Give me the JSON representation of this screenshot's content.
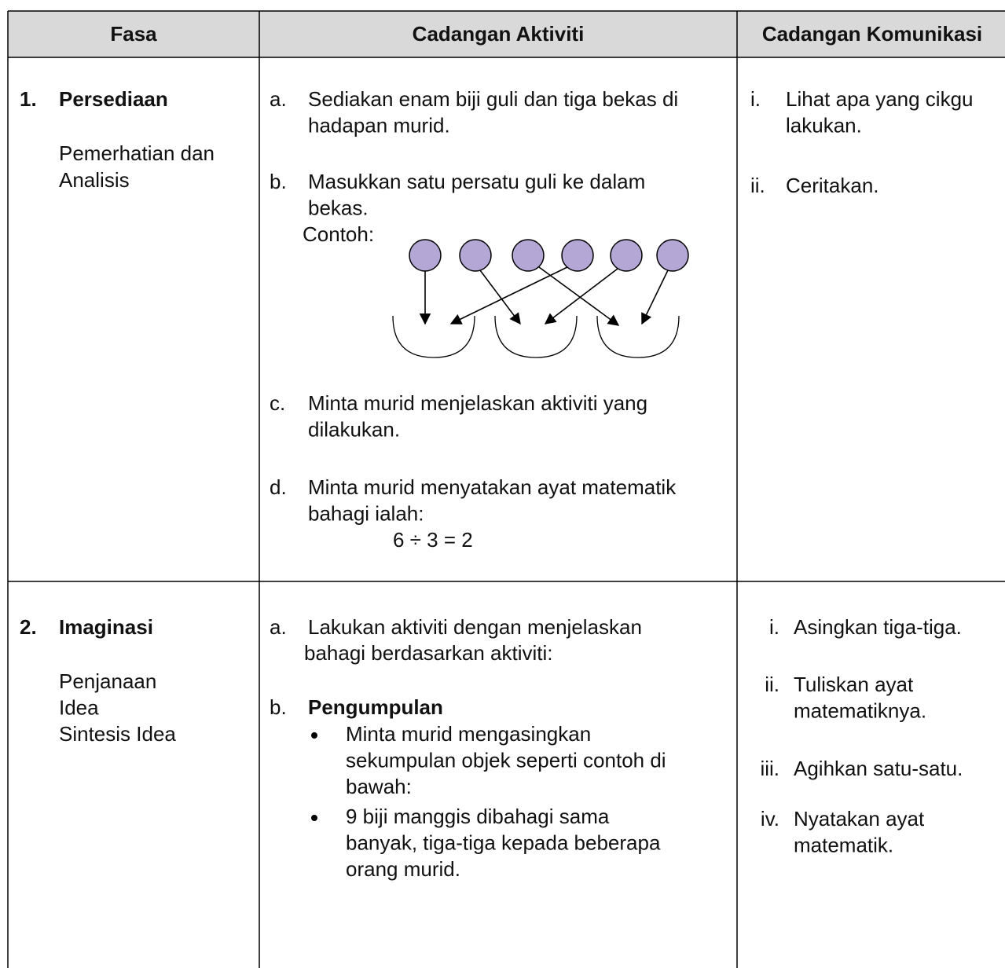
{
  "header": {
    "columns": [
      "Fasa",
      "Cadangan Aktiviti",
      "Cadangan Komunikasi"
    ]
  },
  "table": {
    "rows": [
      {
        "number": "1.",
        "phase": "Persediaan",
        "subphase": [
          "Pemerhatian dan",
          "Analisis"
        ],
        "activities": [
          {
            "marker": "a.",
            "lines": [
              "Sediakan enam biji guli dan tiga bekas di",
              "hadapan murid."
            ]
          },
          {
            "marker": "b.",
            "lines": [
              "Masukkan satu persatu guli ke dalam",
              "bekas."
            ],
            "example_label": "Contoh:"
          },
          {
            "marker": "c.",
            "lines": [
              "Minta murid menjelaskan aktiviti yang",
              "dilakukan."
            ]
          },
          {
            "marker": "d.",
            "lines": [
              "Minta murid menyatakan ayat matematik",
              "bahagi ialah:"
            ],
            "equation": "6 ÷ 3 = 2"
          }
        ],
        "communication": [
          {
            "marker": "i.",
            "lines": [
              "Lihat apa yang cikgu",
              "lakukan."
            ]
          },
          {
            "marker": "ii.",
            "lines": [
              "Ceritakan."
            ]
          }
        ]
      },
      {
        "number": "2.",
        "phase": "Imaginasi",
        "subphase": [
          "Penjanaan",
          "Idea",
          "Sintesis Idea"
        ],
        "activities": [
          {
            "marker": "a.",
            "lines": [
              "Lakukan aktiviti dengan menjelaskan",
              "bahagi berdasarkan aktiviti:"
            ]
          },
          {
            "marker": "b.",
            "heading": "Pengumpulan",
            "bullets": [
              [
                "Minta murid mengasingkan",
                "sekumpulan objek seperti contoh di",
                "bawah:"
              ],
              [
                "9 biji manggis dibahagi sama",
                "banyak, tiga-tiga kepada beberapa",
                "orang murid."
              ]
            ]
          }
        ],
        "communication": [
          {
            "marker": "i.",
            "lines": [
              "Asingkan tiga-tiga."
            ]
          },
          {
            "marker": "ii.",
            "lines": [
              "Tuliskan ayat",
              "matematiknya."
            ]
          },
          {
            "marker": "iii.",
            "lines": [
              "Agihkan satu-satu."
            ]
          },
          {
            "marker": "iv.",
            "lines": [
              "Nyatakan ayat",
              "matematik."
            ]
          }
        ]
      }
    ]
  }
}
